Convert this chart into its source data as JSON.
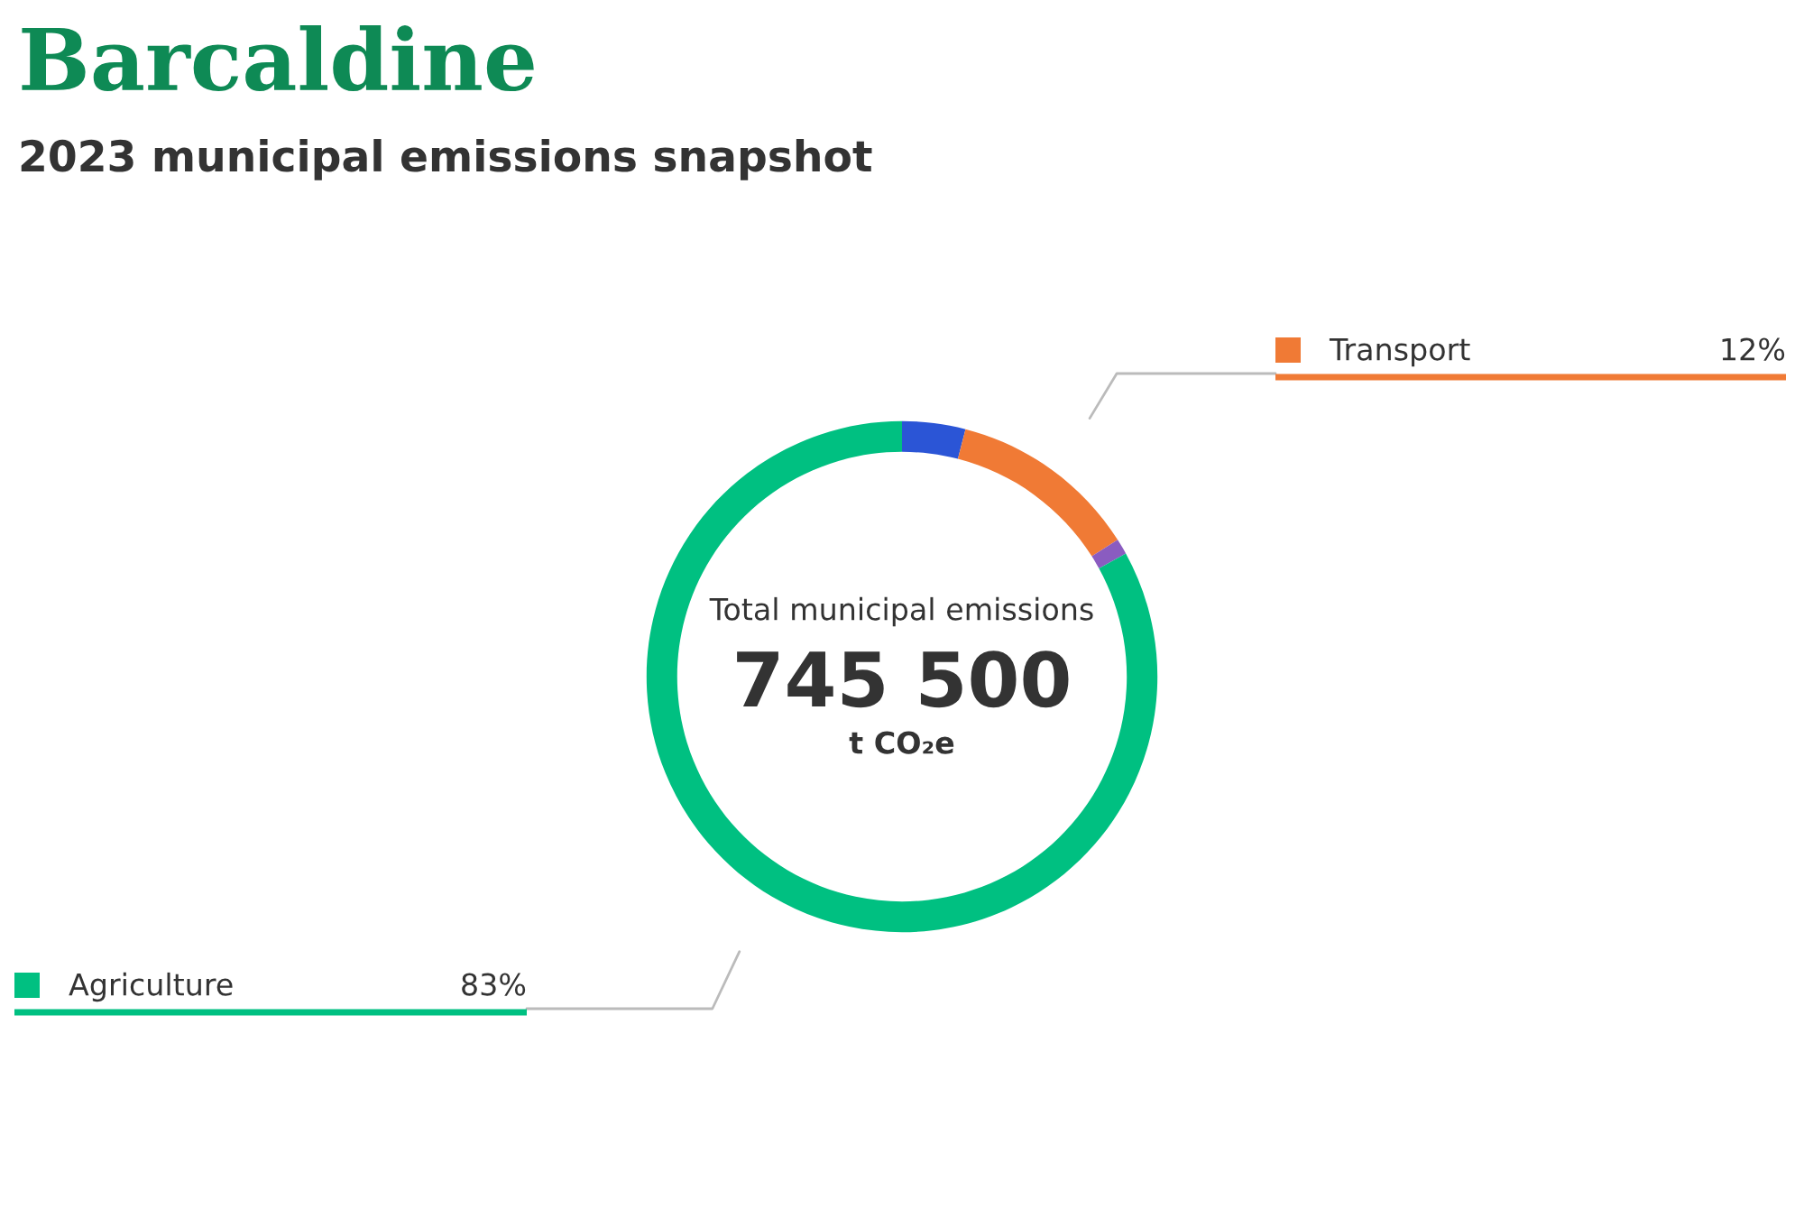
{
  "chart_data": {
    "type": "donut",
    "title": "Barcaldine",
    "subtitle": "2023 municipal emissions snapshot",
    "categories": [
      null,
      "Transport",
      null,
      "Agriculture"
    ],
    "values": [
      4,
      12,
      1,
      83
    ],
    "value_labels": [
      null,
      "12%",
      null,
      "83%"
    ],
    "legend": "left",
    "colors": [
      "#2b55d6",
      "#f07a35",
      "#8a5cc0",
      "#00c081"
    ],
    "annotations": [
      "Total municipal emissions",
      "745 500",
      "t CO₂e"
    ]
  }
}
